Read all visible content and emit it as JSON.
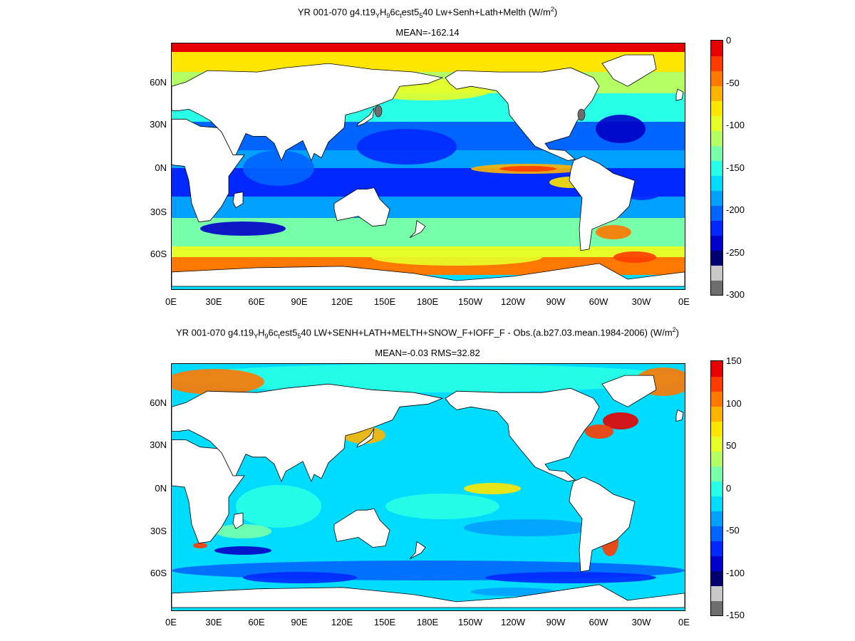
{
  "panels": [
    {
      "title_prefix": "YR 001-070 g4.t19",
      "title_rest": " Lw+Senh+Lath+Melth (W/m",
      "title_suffix": ")",
      "subtitle": "MEAN=-162.14",
      "lat_labels": [
        "60N",
        "30N",
        "0N",
        "30S",
        "60S"
      ],
      "lon_labels": [
        "0E",
        "30E",
        "60E",
        "90E",
        "120E",
        "150E",
        "180E",
        "150W",
        "120W",
        "90W",
        "60W",
        "30W",
        "0E"
      ],
      "colorbar_labels": [
        "0",
        "-50",
        "-100",
        "-150",
        "-200",
        "-250",
        "-300"
      ]
    },
    {
      "title_prefix": "YR 001-070 g4.t19",
      "title_rest": " LW+SENH+LATH+MELTH+SNOW_F+IOFF_F - Obs.(a.b27.03.mean.1984-2006) (W/m",
      "title_suffix": ")",
      "subtitle": "MEAN=-0.03 RMS=32.82",
      "lat_labels": [
        "60N",
        "30N",
        "0N",
        "30S",
        "60S"
      ],
      "lon_labels": [
        "0E",
        "30E",
        "60E",
        "90E",
        "120E",
        "150E",
        "180E",
        "150W",
        "120W",
        "90W",
        "60W",
        "30W",
        "0E"
      ],
      "colorbar_labels": [
        "150",
        "100",
        "50",
        "0",
        "-50",
        "-100",
        "-150"
      ]
    }
  ],
  "title_sub": {
    "y": "Y",
    "h": "H",
    "nine": "9",
    "t": "t",
    "five": "5",
    "exp": "2"
  },
  "title_parts": {
    "H": "H",
    "sixc": "6c",
    "est": "est",
    "fortyb": "40"
  },
  "colormap": [
    "#6e6e6e",
    "#c8c8c8",
    "#00006e",
    "#0000c8",
    "#0028ff",
    "#0064ff",
    "#00a0ff",
    "#00dcff",
    "#28ffe6",
    "#78ffaa",
    "#b4ff64",
    "#e6ff28",
    "#ffe600",
    "#ffb400",
    "#ff7800",
    "#ff3c00",
    "#e60000"
  ],
  "land_color": "#ffffff"
}
